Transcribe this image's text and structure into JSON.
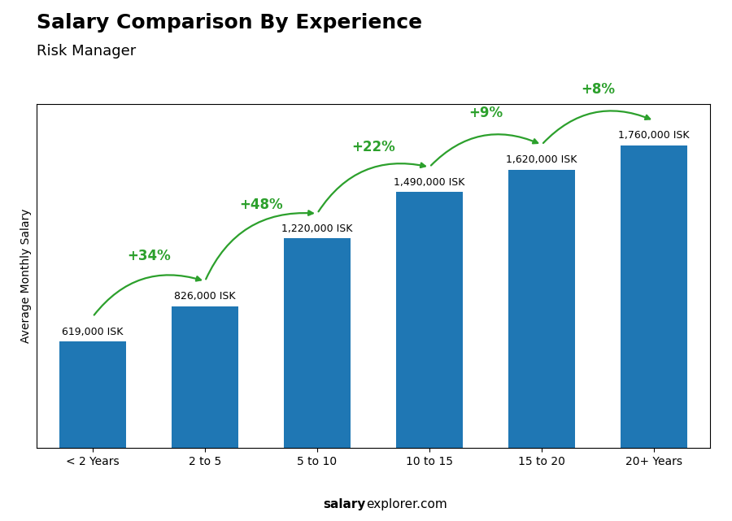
{
  "chart_data": {
    "type": "bar",
    "title": "Salary Comparison By Experience",
    "subtitle": "Risk Manager",
    "categories": [
      "< 2 Years",
      "2 to 5",
      "5 to 10",
      "10 to 15",
      "15 to 20",
      "20+ Years"
    ],
    "values": [
      619000,
      826000,
      1220000,
      1490000,
      1620000,
      1760000
    ],
    "value_labels": [
      "619,000 ISK",
      "826,000 ISK",
      "1,220,000 ISK",
      "1,490,000 ISK",
      "1,620,000 ISK",
      "1,760,000 ISK"
    ],
    "data_labels": true,
    "annotations": [
      "+34%",
      "+48%",
      "+22%",
      "+9%",
      "+8%"
    ],
    "ylabel": "Average Monthly Salary",
    "footer": [
      "salary",
      "explorer.com"
    ],
    "ylim": [
      0,
      2000000
    ],
    "tick_labels": "x",
    "grid": false
  }
}
